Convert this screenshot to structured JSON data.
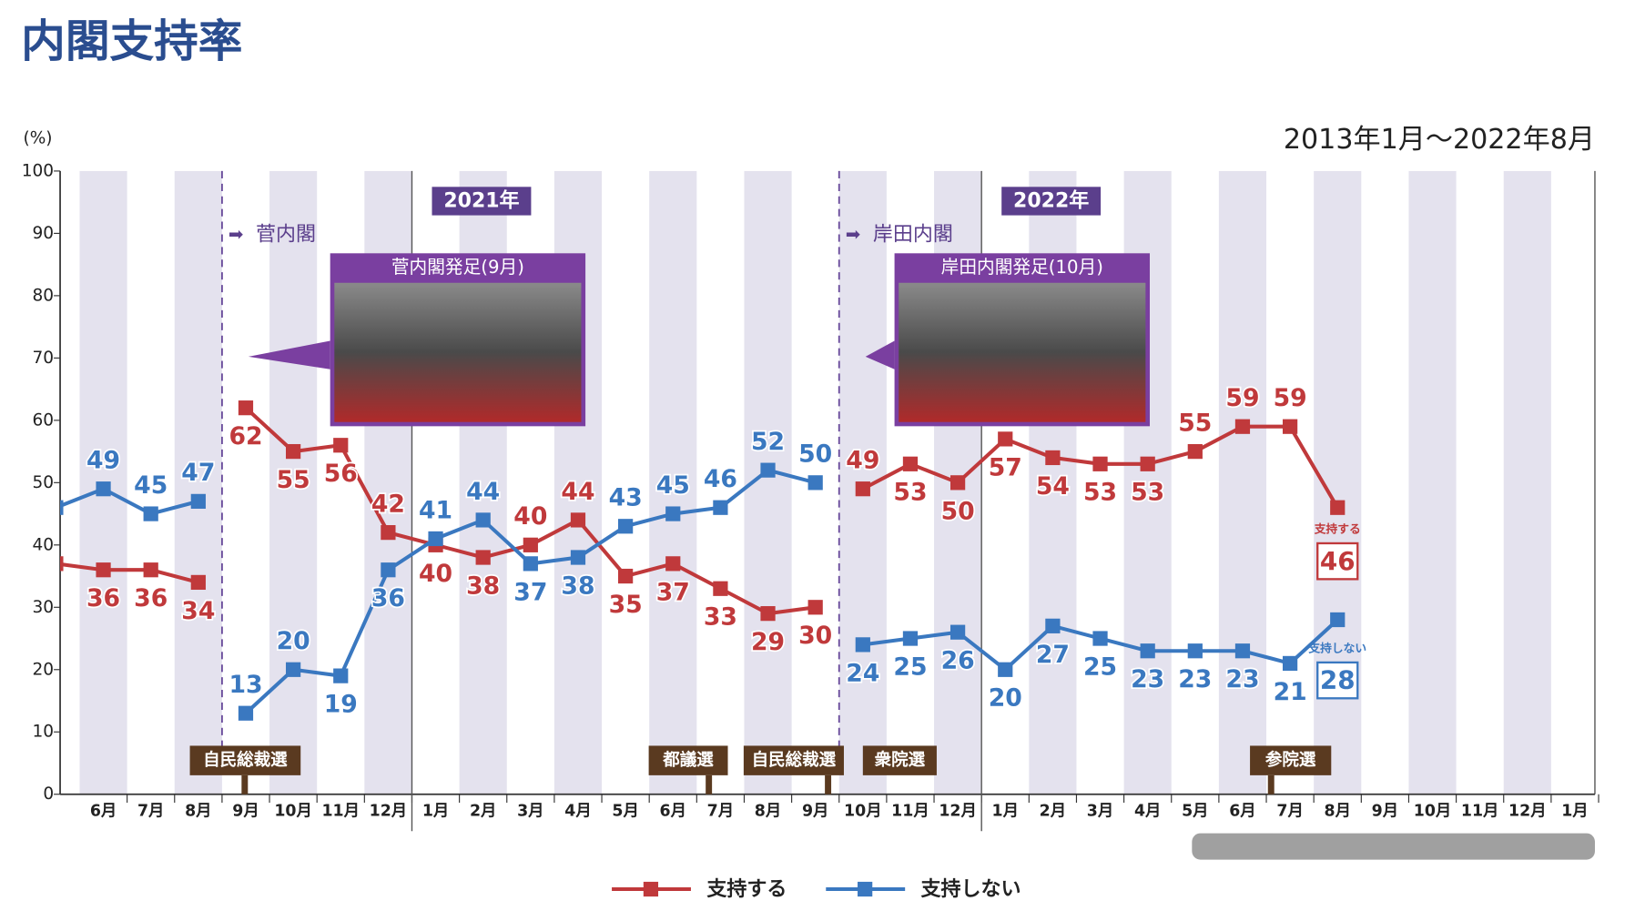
{
  "chart_data": {
    "type": "line",
    "title": "内閣支持率",
    "subtitle": "2013年1月～2022年8月",
    "y_label": "(%)",
    "categories": [
      null,
      "6月",
      "7月",
      "8月",
      "9月",
      "10月",
      "11月",
      "12月",
      "1月",
      "2月",
      "3月",
      "4月",
      "5月",
      "6月",
      "7月",
      "8月",
      "9月",
      "10月",
      "11月",
      "12月",
      "1月",
      "2月",
      "3月",
      "4月",
      "5月",
      "6月",
      "7月",
      "8月",
      "9月",
      "10月",
      "11月",
      "12月",
      "1月"
    ],
    "series": [
      {
        "name": "支持する",
        "color": "#c0393b",
        "values": [
          37,
          36,
          36,
          34,
          62,
          55,
          56,
          42,
          40,
          38,
          40,
          44,
          35,
          37,
          33,
          29,
          30,
          49,
          53,
          50,
          57,
          54,
          53,
          53,
          55,
          59,
          59,
          46,
          null,
          null,
          null,
          null,
          null
        ]
      },
      {
        "name": "支持しない",
        "color": "#3a78c0",
        "values": [
          46,
          49,
          45,
          47,
          13,
          20,
          19,
          36,
          41,
          44,
          37,
          38,
          43,
          45,
          46,
          52,
          50,
          24,
          25,
          26,
          20,
          27,
          25,
          23,
          23,
          23,
          21,
          28,
          null,
          null,
          null,
          null,
          null
        ]
      }
    ],
    "ylim": [
      0,
      100
    ],
    "yticks": [
      0,
      10,
      20,
      30,
      40,
      50,
      60,
      70,
      80,
      90,
      100
    ],
    "year_labels": [
      "2021年",
      "2022年"
    ],
    "cabinets": [
      {
        "label": "菅内閣",
        "photo_caption": "菅内閣発足(9月)"
      },
      {
        "label": "岸田内閣",
        "photo_caption": "岸田内閣発足(10月)"
      }
    ],
    "events": [
      "自民総裁選",
      "都議選",
      "自民総裁選",
      "衆院選",
      "参院選"
    ]
  }
}
